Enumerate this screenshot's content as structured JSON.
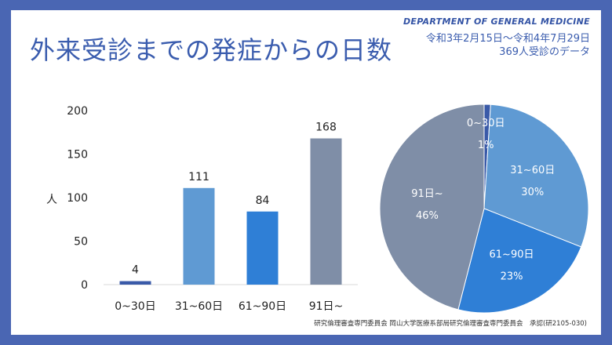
{
  "header": {
    "department": "DEPARTMENT OF GENERAL MEDICINE",
    "title": "外来受診までの発症からの日数",
    "period_line1": "令和3年2月15日～令和4年7月29日",
    "period_line2": "369人受診のデータ"
  },
  "footer": {
    "approval": "研究倫理審査専門委員会 岡山大学医療系部局研究倫理審査専門委員会　承認(研2105-030)"
  },
  "chart_data": [
    {
      "type": "bar",
      "categories": [
        "0~30日",
        "31~60日",
        "61~90日",
        "91日~"
      ],
      "values": [
        4,
        111,
        84,
        168
      ],
      "colors": [
        "#3a5aa8",
        "#5f9ad3",
        "#2f7fd6",
        "#7f8ea7"
      ],
      "title": "",
      "xlabel": "",
      "ylabel": "人",
      "ylim": [
        0,
        200
      ],
      "yticks": [
        0,
        50,
        100,
        150,
        200
      ],
      "grid": false
    },
    {
      "type": "pie",
      "labels": [
        "0~30日",
        "31~60日",
        "61~90日",
        "91日~"
      ],
      "values": [
        1,
        30,
        23,
        46
      ],
      "value_labels": [
        "1%",
        "30%",
        "23%",
        "46%"
      ],
      "colors": [
        "#3a5aa8",
        "#5f9ad3",
        "#2f7fd6",
        "#7f8ea7"
      ]
    }
  ]
}
